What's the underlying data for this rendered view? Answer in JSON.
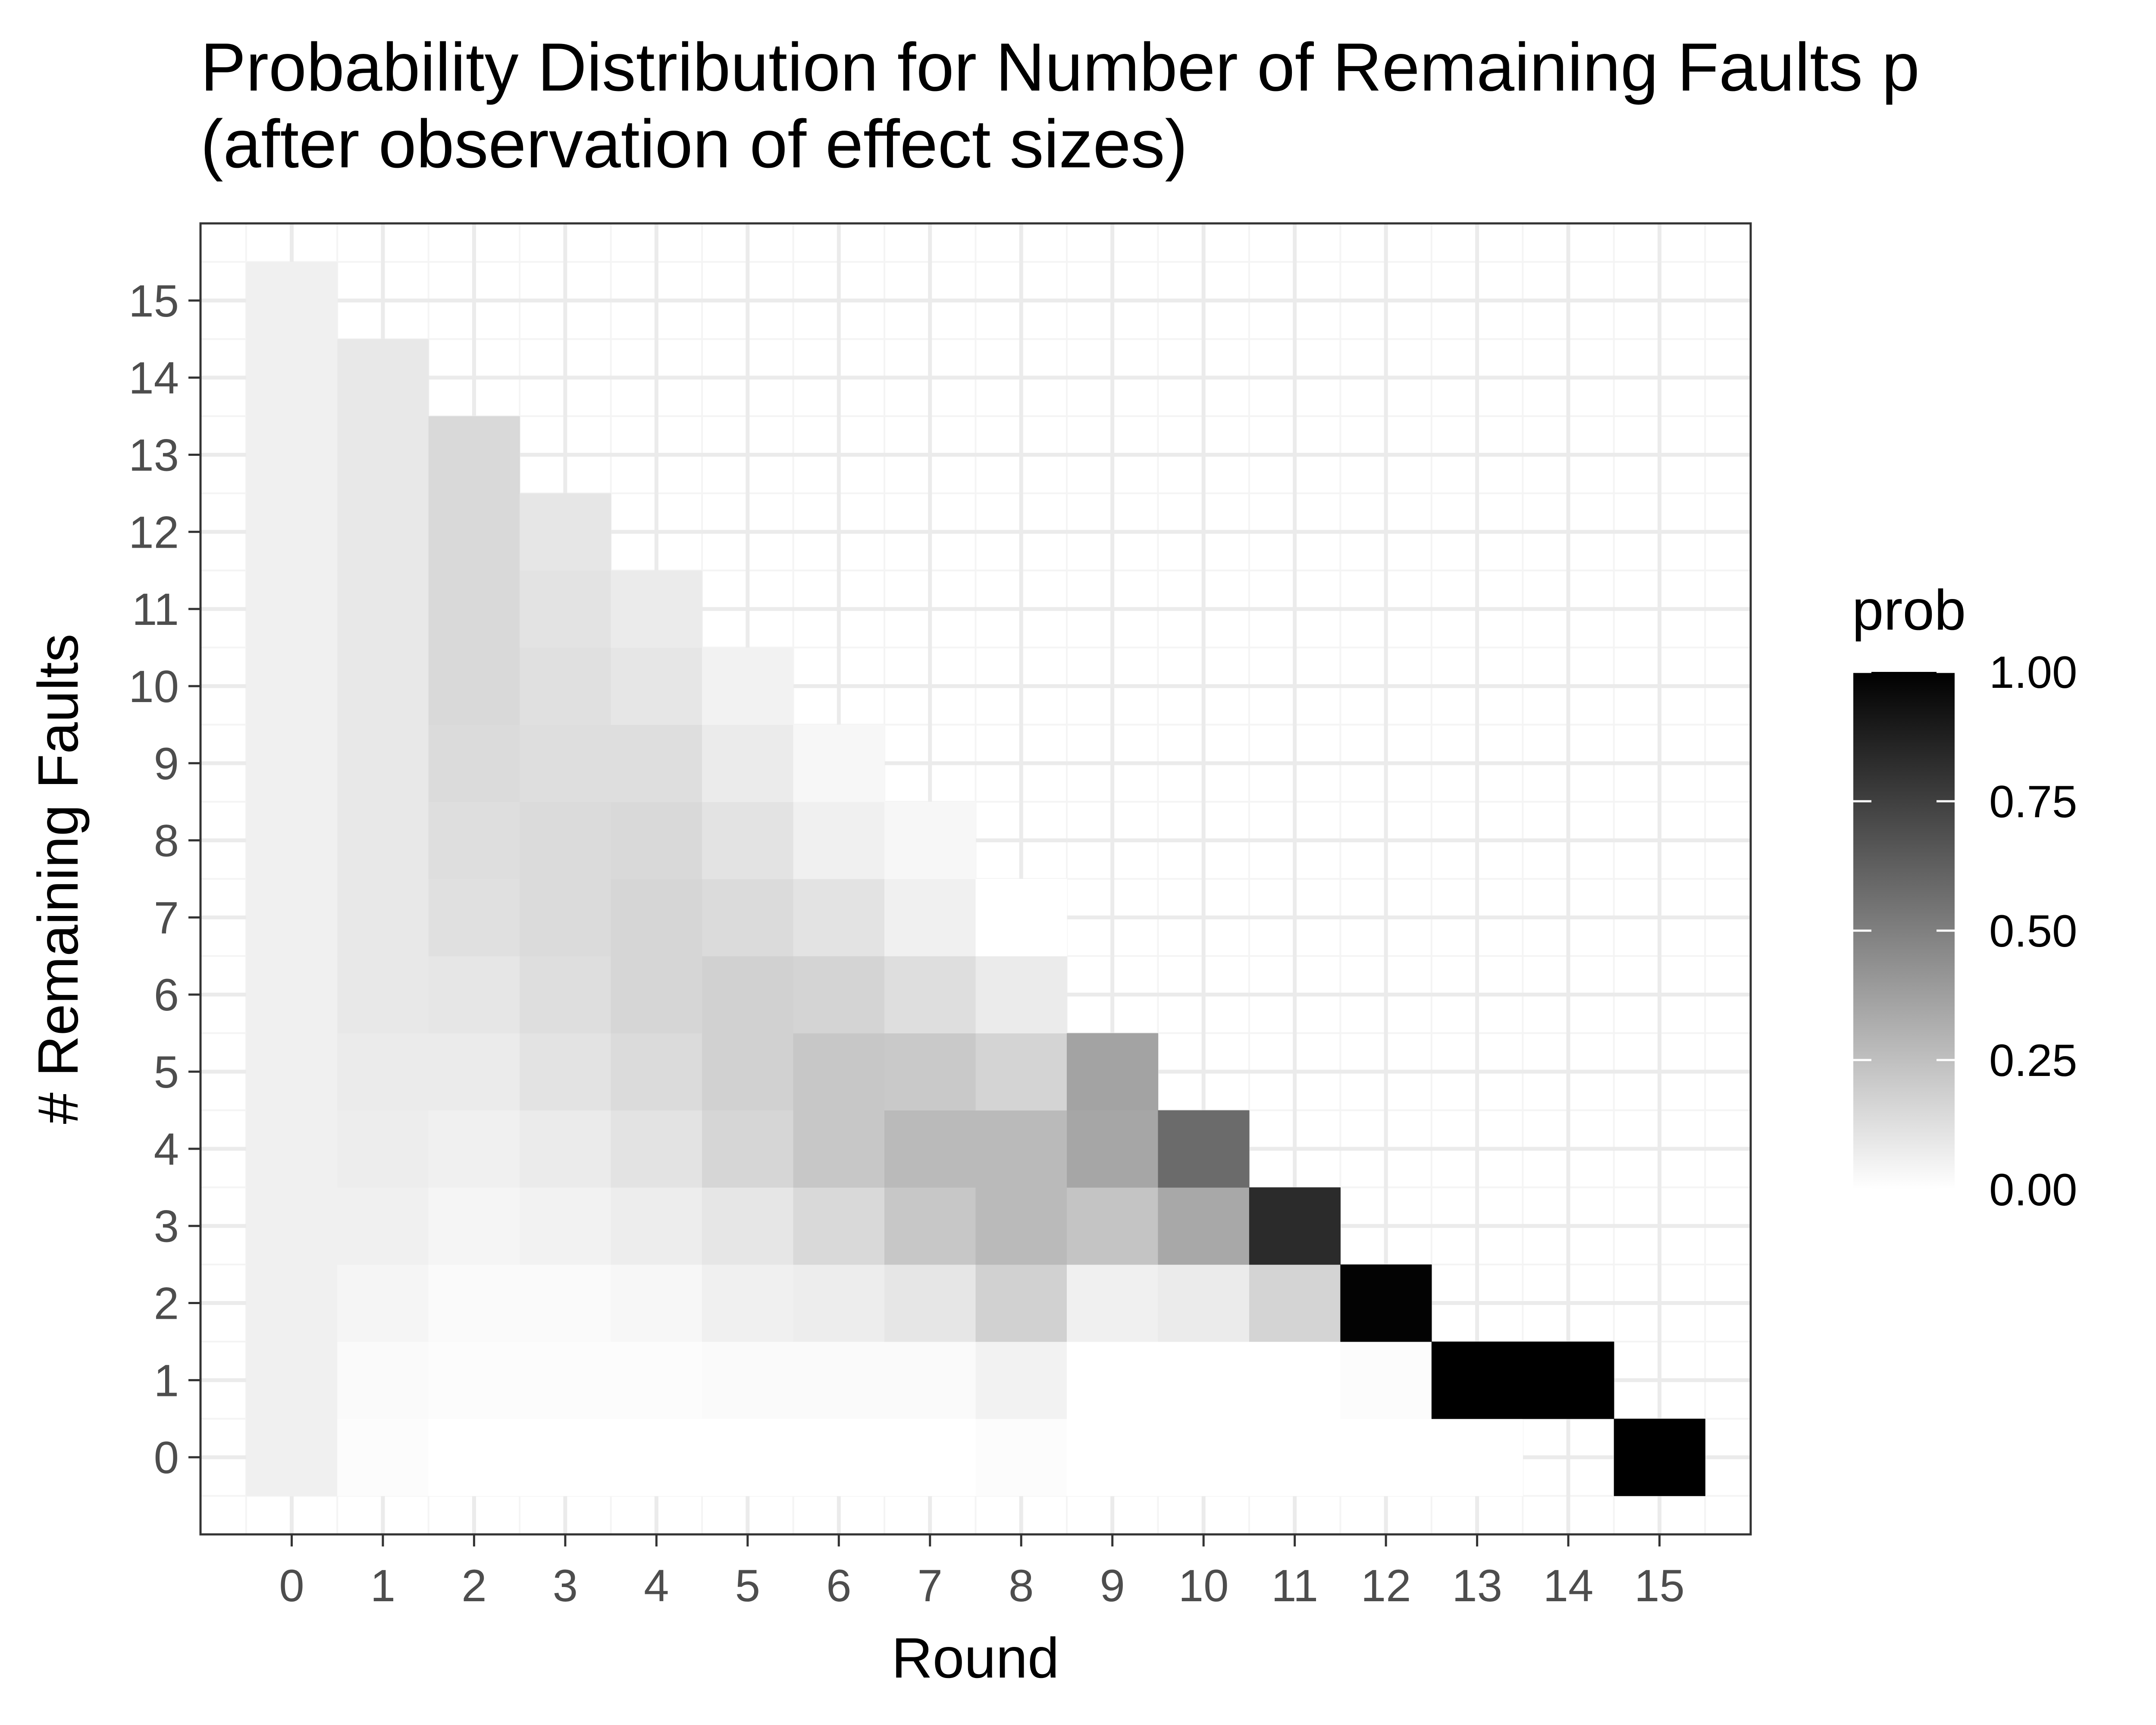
{
  "chart_data": {
    "type": "heatmap",
    "title": "Probability Distribution for Number of Remaining Faults p",
    "subtitle": "(after observation of effect sizes)",
    "xlabel": "Round",
    "ylabel": "# Remaining Faults",
    "x_ticks": [
      "0",
      "1",
      "2",
      "3",
      "4",
      "5",
      "6",
      "7",
      "8",
      "9",
      "10",
      "11",
      "12",
      "13",
      "14",
      "15"
    ],
    "y_ticks": [
      "0",
      "1",
      "2",
      "3",
      "4",
      "5",
      "6",
      "7",
      "8",
      "9",
      "10",
      "11",
      "12",
      "13",
      "14",
      "15"
    ],
    "xlim": [
      -1,
      16
    ],
    "ylim": [
      -1,
      16
    ],
    "grid": true,
    "color_scale": {
      "low": "#ffffff",
      "high": "#000000",
      "min": 0,
      "max": 1
    },
    "legend": {
      "title": "prob",
      "placement": "right",
      "breaks": [
        1.0,
        0.75,
        0.5,
        0.25,
        0.0
      ],
      "labels": [
        "1.00",
        "0.75",
        "0.50",
        "0.25",
        "0.00"
      ]
    },
    "columns": [
      {
        "round": 0,
        "probs": [
          0.06,
          0.06,
          0.06,
          0.06,
          0.06,
          0.06,
          0.06,
          0.06,
          0.06,
          0.06,
          0.06,
          0.06,
          0.06,
          0.06,
          0.06,
          0.06
        ]
      },
      {
        "round": 1,
        "probs": [
          0.01,
          0.02,
          0.04,
          0.06,
          0.07,
          0.08,
          0.09,
          0.09,
          0.09,
          0.09,
          0.09,
          0.09,
          0.09,
          0.09,
          0.09
        ]
      },
      {
        "round": 2,
        "probs": [
          0.0,
          0.01,
          0.02,
          0.04,
          0.06,
          0.08,
          0.1,
          0.12,
          0.13,
          0.14,
          0.15,
          0.15,
          0.15,
          0.15
        ]
      },
      {
        "round": 3,
        "probs": [
          0.0,
          0.01,
          0.02,
          0.05,
          0.08,
          0.11,
          0.13,
          0.14,
          0.14,
          0.13,
          0.12,
          0.11,
          0.1
        ]
      },
      {
        "round": 4,
        "probs": [
          0.0,
          0.01,
          0.03,
          0.07,
          0.11,
          0.14,
          0.16,
          0.16,
          0.15,
          0.13,
          0.1,
          0.08
        ]
      },
      {
        "round": 5,
        "probs": [
          0.0,
          0.02,
          0.06,
          0.1,
          0.16,
          0.18,
          0.18,
          0.14,
          0.11,
          0.08,
          0.05
        ]
      },
      {
        "round": 6,
        "probs": [
          0.0,
          0.02,
          0.07,
          0.15,
          0.22,
          0.22,
          0.17,
          0.11,
          0.06,
          0.03
        ]
      },
      {
        "round": 7,
        "probs": [
          0.0,
          0.02,
          0.1,
          0.22,
          0.27,
          0.21,
          0.13,
          0.06,
          0.03
        ]
      },
      {
        "round": 8,
        "probs": [
          0.01,
          0.05,
          0.18,
          0.27,
          0.27,
          0.17,
          0.08,
          0.0
        ]
      },
      {
        "round": 9,
        "probs": [
          0.0,
          0.0,
          0.06,
          0.23,
          0.35,
          0.36
        ]
      },
      {
        "round": 10,
        "probs": [
          0.0,
          0.0,
          0.08,
          0.34,
          0.58
        ]
      },
      {
        "round": 11,
        "probs": [
          0.0,
          0.0,
          0.17,
          0.83
        ]
      },
      {
        "round": 12,
        "probs": [
          0.0,
          0.01,
          0.99
        ]
      },
      {
        "round": 13,
        "probs": [
          0.0,
          1.0
        ]
      },
      {
        "round": 14,
        "probs": [
          1.0
        ]
      },
      {
        "round": 15,
        "probs": [
          1.0
        ]
      }
    ],
    "note_round_offsets": [
      0,
      0,
      0,
      0,
      0,
      0,
      0,
      0,
      0,
      0,
      0,
      0,
      0,
      0,
      1,
      0
    ]
  }
}
